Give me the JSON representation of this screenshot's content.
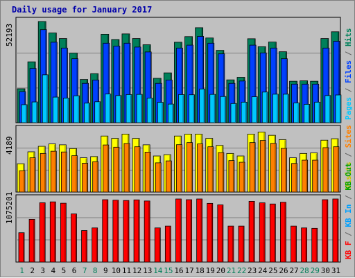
{
  "chart_data": {
    "type": "bar",
    "title": "Daily usage for January 2017",
    "x": [
      "1",
      "2",
      "3",
      "4",
      "5",
      "6",
      "7",
      "8",
      "9",
      "10",
      "11",
      "12",
      "13",
      "14",
      "15",
      "16",
      "17",
      "18",
      "19",
      "20",
      "21",
      "22",
      "23",
      "24",
      "25",
      "26",
      "27",
      "28",
      "29",
      "30",
      "31"
    ],
    "weekend_days": [
      "1",
      "7",
      "8",
      "14",
      "15",
      "21",
      "22",
      "28",
      "29"
    ],
    "panels": [
      {
        "name": "hits",
        "ymax_label": "52193",
        "axis_label_parts": [
          {
            "text": "Pages",
            "color": "#00c8ff"
          },
          {
            "text": " / ",
            "color": "#606060"
          },
          {
            "text": "Files",
            "color": "#0040ff"
          },
          {
            "text": " / ",
            "color": "#606060"
          },
          {
            "text": "Hits",
            "color": "#00805a"
          }
        ],
        "ymax": 52193,
        "series": [
          {
            "name": "Hits",
            "color": "#00805a",
            "values": [
              17500,
              31400,
              52193,
              46300,
              43400,
              35900,
              22300,
              25300,
              45600,
              42900,
              45800,
              43400,
              40200,
              22900,
              25700,
              41500,
              44400,
              49000,
              43700,
              37300,
              22100,
              23400,
              43300,
              39200,
              41600,
              36600,
              21400,
              21600,
              21400,
              43400,
              46900
            ]
          },
          {
            "name": "Files",
            "color": "#0040ff",
            "values": [
              16000,
              28000,
              48000,
              41500,
              38500,
              33000,
              20300,
              22000,
              41000,
              39500,
              41000,
              39000,
              36500,
              20300,
              22000,
              38500,
              40000,
              44500,
              41000,
              35500,
              20300,
              21500,
              40000,
              36000,
              38500,
              33000,
              19900,
              19900,
              19900,
              38500,
              42000
            ]
          },
          {
            "name": "Pages",
            "color": "#00c8ff",
            "values": [
              9300,
              10700,
              24700,
              13200,
              12700,
              13900,
              10100,
              10800,
              14800,
              14000,
              14500,
              14600,
              12700,
              10500,
              9600,
              14500,
              14400,
              17400,
              14600,
              13500,
              9900,
              10600,
              13400,
              15800,
              14700,
              14700,
              10200,
              9500,
              10600,
              14000,
              14300
            ]
          }
        ]
      },
      {
        "name": "visits",
        "ymax_label": "4189",
        "axis_label_parts": [
          {
            "text": "Visits",
            "color": "#c8c800"
          },
          {
            "text": " / ",
            "color": "#606060"
          },
          {
            "text": "Sites",
            "color": "#ff8000"
          }
        ],
        "ymax": 4189,
        "series": [
          {
            "name": "Visits",
            "color": "#ffff00",
            "values": [
              1900,
              2700,
              3070,
              3230,
              3170,
              2920,
              2300,
              2380,
              3760,
              3600,
              3890,
              3600,
              3170,
              2420,
              2510,
              3760,
              3890,
              3890,
              3600,
              3130,
              2590,
              2420,
              3890,
              4030,
              3810,
              3520,
              2300,
              2590,
              2630,
              3480,
              3580
            ]
          },
          {
            "name": "Sites",
            "color": "#ff8000",
            "values": [
              1430,
              2300,
              2590,
              2740,
              2690,
              2440,
              1930,
              2040,
              3160,
              3010,
              3260,
              3040,
              2680,
              1960,
              2090,
              3180,
              3320,
              3230,
              3040,
              2650,
              2110,
              2000,
              3320,
              3460,
              3270,
              2930,
              1920,
              2140,
              2140,
              2980,
              3040
            ]
          }
        ]
      },
      {
        "name": "kbytes",
        "ymax_label": "1075201",
        "axis_label_parts": [
          {
            "text": "KB F",
            "color": "#ff0000"
          },
          {
            "text": " / ",
            "color": "#606060"
          },
          {
            "text": "KB In",
            "color": "#00a0ff"
          },
          {
            "text": " / ",
            "color": "#606060"
          },
          {
            "text": "KB Out",
            "color": "#00a000"
          }
        ],
        "ymax": 1075201,
        "series": [
          {
            "name": "KB F",
            "color": "#ff0000",
            "values": [
              500000,
              728000,
              1011000,
              1026000,
              1003000,
              821000,
              537000,
              582000,
              1063000,
              1055000,
              1050000,
              1060000,
              1041000,
              582000,
              613000,
              1075201,
              1063000,
              1075201,
              1000000,
              975000,
              613000,
              613000,
              1035000,
              1010000,
              990000,
              1020000,
              613000,
              582000,
              575000,
              1063000,
              1075201
            ]
          }
        ]
      }
    ]
  }
}
